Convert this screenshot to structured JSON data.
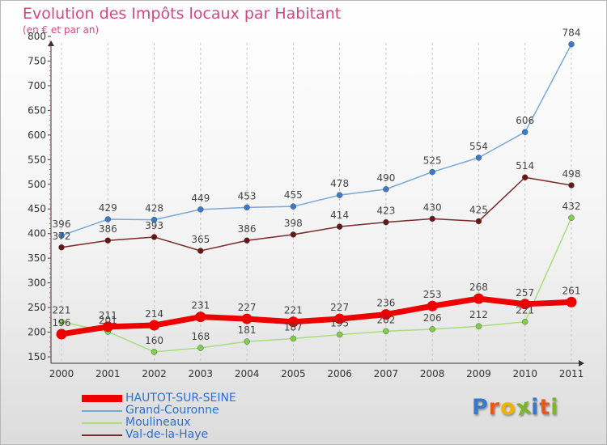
{
  "header": {
    "title": "Evolution des Impôts locaux par Habitant",
    "subtitle": "(en € et par an)"
  },
  "logo": {
    "letters": [
      "P",
      "r",
      "o",
      "x",
      "i",
      "t",
      "i"
    ],
    "colors": [
      "#3a78c8",
      "#e8581c",
      "#f0b400",
      "#7ab52a",
      "#3a78c8",
      "#e8581c",
      "#7ab52a"
    ]
  },
  "colors": {
    "HAUTOT-SUR-SEINE": "#ee0000",
    "Grand-Couronne": "#7aa9d6",
    "Moulineaux": "#a8dd7c",
    "Val-de-la-Haye": "#7a2a2a",
    "legend_text": "#2f6fd0",
    "title": "#d14a7f"
  },
  "chart_data": {
    "type": "line",
    "title": "Evolution des Impôts locaux par Habitant",
    "subtitle": "(en € et par an)",
    "xlabel": "",
    "ylabel": "",
    "x": [
      "2000",
      "2001",
      "2002",
      "2003",
      "2004",
      "2005",
      "2006",
      "2007",
      "2008",
      "2009",
      "2010",
      "2011"
    ],
    "ylim": [
      150,
      800
    ],
    "yticks": [
      "150",
      "200",
      "250",
      "300",
      "350",
      "400",
      "450",
      "500",
      "550",
      "600",
      "650",
      "700",
      "750",
      "800"
    ],
    "grid": "vertical dashed",
    "legend_position": "bottom-left",
    "series": [
      {
        "name": "HAUTOT-SUR-SEINE",
        "values": [
          196,
          211,
          214,
          231,
          227,
          221,
          227,
          236,
          253,
          268,
          257,
          261
        ],
        "labels": [
          "196",
          "211",
          "214",
          "231",
          "227",
          "221",
          "227",
          "236",
          "253",
          "268",
          "257",
          "261"
        ]
      },
      {
        "name": "Grand-Couronne",
        "values": [
          396,
          429,
          428,
          449,
          453,
          455,
          478,
          490,
          525,
          554,
          606,
          784
        ],
        "labels": [
          "396",
          "429",
          "428",
          "449",
          "453",
          "455",
          "478",
          "490",
          "525",
          "554",
          "606",
          "784"
        ]
      },
      {
        "name": "Moulineaux",
        "values": [
          221,
          201,
          160,
          168,
          181,
          187,
          195,
          202,
          206,
          212,
          221,
          432
        ],
        "labels": [
          "221",
          "201",
          "160",
          "168",
          "181",
          "187",
          "195",
          "202",
          "206",
          "212",
          "221",
          "432"
        ]
      },
      {
        "name": "Val-de-la-Haye",
        "values": [
          372,
          386,
          393,
          365,
          386,
          398,
          414,
          423,
          430,
          425,
          514,
          498
        ],
        "labels": [
          "372",
          "386",
          "393",
          "365",
          "386",
          "398",
          "414",
          "423",
          "430",
          "425",
          "514",
          "498"
        ]
      }
    ]
  }
}
